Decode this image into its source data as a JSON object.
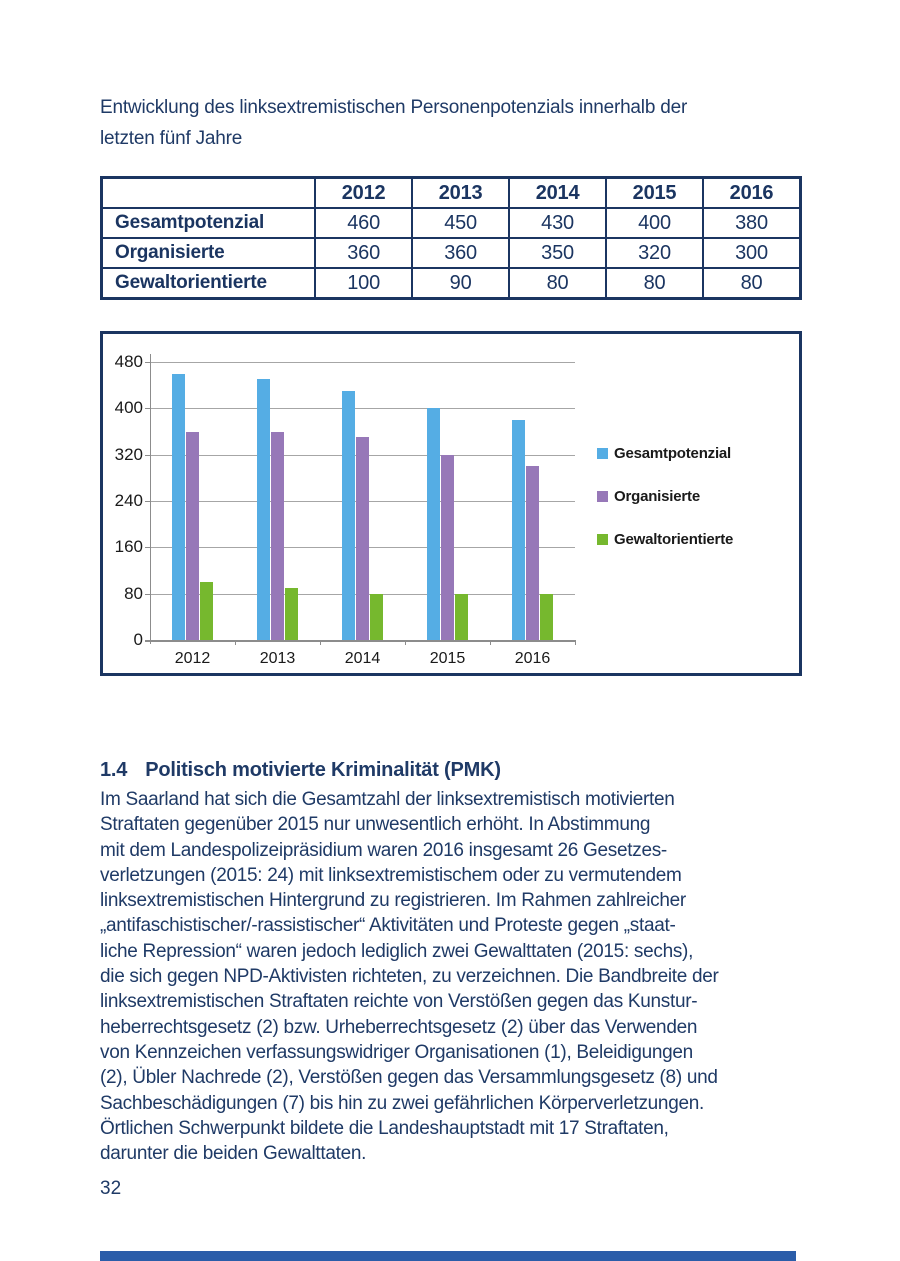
{
  "page": {
    "intro_title_lines": [
      "Entwicklung des linksextremistischen Personenpotenzials innerhalb der",
      "letzten fünf Jahre"
    ],
    "page_number": "32"
  },
  "table": {
    "header": [
      "",
      "2012",
      "2013",
      "2014",
      "2015",
      "2016"
    ],
    "rows": [
      {
        "label": "Gesamtpotenzial",
        "values": [
          "460",
          "450",
          "430",
          "400",
          "380"
        ]
      },
      {
        "label": "Organisierte",
        "values": [
          "360",
          "360",
          "350",
          "320",
          "300"
        ]
      },
      {
        "label": "Gewaltorientierte",
        "values": [
          "100",
          "90",
          "80",
          "80",
          "80"
        ]
      }
    ]
  },
  "chart_data": {
    "type": "bar",
    "title": "",
    "xlabel": "",
    "ylabel": "",
    "categories": [
      "2012",
      "2013",
      "2014",
      "2015",
      "2016"
    ],
    "series": [
      {
        "name": "Gesamtpotenzial",
        "color": "#55ADE4",
        "values": [
          460,
          450,
          430,
          400,
          380
        ]
      },
      {
        "name": "Organisierte",
        "color": "#9778B8",
        "values": [
          360,
          360,
          350,
          320,
          300
        ]
      },
      {
        "name": "Gewaltorientierte",
        "color": "#76B82E",
        "values": [
          100,
          90,
          80,
          80,
          80
        ]
      }
    ],
    "ylim": [
      0,
      480
    ],
    "yticks": [
      0,
      80,
      160,
      240,
      320,
      400,
      480
    ],
    "grid": true,
    "legend_position": "right"
  },
  "section": {
    "heading_number": "1.4",
    "heading_text": "Politisch motivierte Kriminalität (PMK)",
    "body_lines": [
      "Im Saarland hat sich die Gesamtzahl der linksextremistisch motivierten",
      "Straftaten gegenüber 2015 nur unwesentlich erhöht. In Abstimmung",
      "mit dem Landespolizeipräsidium waren 2016 insgesamt 26 Gesetzes-",
      "verletzungen (2015: 24) mit linksextremistischem oder zu vermutendem",
      "linksextremistischen Hintergrund zu registrieren. Im Rahmen zahlreicher",
      "„antifaschistischer/-rassistischer“ Aktivitäten und Proteste gegen „staat-",
      "liche Repression“ waren jedoch lediglich zwei Gewalttaten (2015: sechs),",
      "die sich gegen NPD-Aktivisten richteten, zu verzeichnen. Die Bandbreite der",
      "linksextremistischen Straftaten reichte von Verstößen gegen das Kunstur-",
      "heberrechtsgesetz (2) bzw. Urheberrechtsgesetz (2) über das Verwenden",
      "von Kennzeichen verfassungswidriger Organisationen (1), Beleidigungen",
      "(2), Übler Nachrede (2), Verstößen gegen das Versammlungsgesetz (8) und",
      "Sachbeschädigungen (7) bis hin zu zwei gefährlichen Körperverletzungen.",
      "Örtlichen Schwerpunkt bildete die Landeshauptstadt mit 17 Straftaten,",
      "darunter die beiden Gewalttaten."
    ]
  },
  "colors": {
    "text_navy": "#1F3A66",
    "border_navy": "#1B3561",
    "footer_bar_blue": "#2B5DA9",
    "gridline_gray": "#A6A6A6",
    "axis_gray": "#8C8C8C"
  }
}
